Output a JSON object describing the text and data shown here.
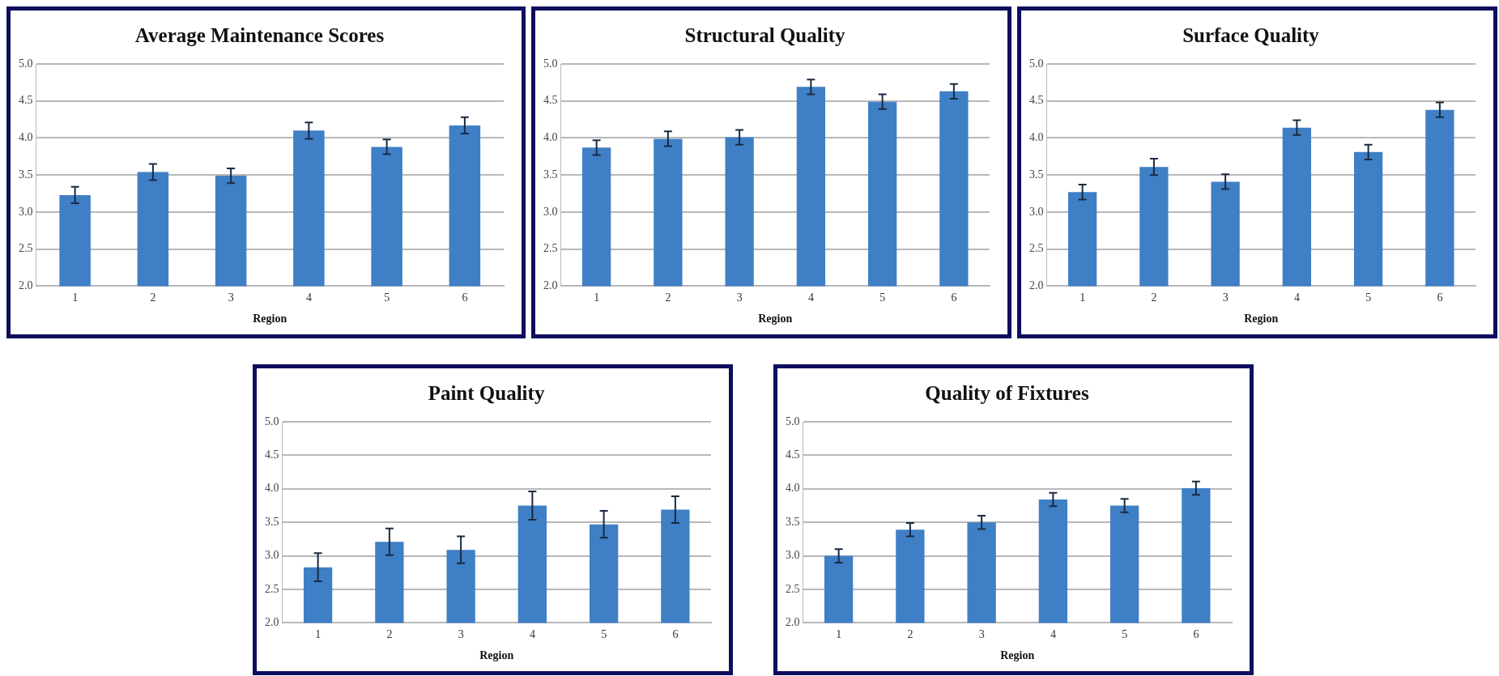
{
  "chart_data": [
    {
      "type": "bar",
      "title": "Average Maintenance Scores",
      "xlabel": "Region",
      "categories": [
        "1",
        "2",
        "3",
        "4",
        "5",
        "6"
      ],
      "values": [
        3.23,
        3.54,
        3.49,
        4.1,
        3.88,
        4.17
      ],
      "errors": [
        0.11,
        0.11,
        0.1,
        0.11,
        0.1,
        0.11
      ],
      "color": "#3f7fc6",
      "ylim": [
        2.0,
        5.0
      ],
      "yticks": [
        {
          "value": 2,
          "label": "2.0"
        },
        {
          "value": 2.5,
          "label": "2.5"
        },
        {
          "value": 3,
          "label": "3.0"
        },
        {
          "value": 3.5,
          "label": "3.5"
        },
        {
          "value": 4,
          "label": "4.0"
        },
        {
          "value": 4.5,
          "label": "4.5"
        },
        {
          "value": 5,
          "label": "5.0"
        }
      ],
      "grid": "y",
      "legend": false
    },
    {
      "type": "bar",
      "title": "Structural Quality",
      "xlabel": "Region",
      "categories": [
        "1",
        "2",
        "3",
        "4",
        "5",
        "6"
      ],
      "values": [
        3.87,
        3.99,
        4.01,
        4.69,
        4.49,
        4.63
      ],
      "errors": [
        0.1,
        0.1,
        0.1,
        0.1,
        0.1,
        0.1
      ],
      "color": "#3f7fc6",
      "ylim": [
        2.0,
        5.0
      ],
      "yticks": [
        {
          "value": 2,
          "label": "2.0"
        },
        {
          "value": 2.5,
          "label": "2.5"
        },
        {
          "value": 3,
          "label": "3.0"
        },
        {
          "value": 3.5,
          "label": "3.5"
        },
        {
          "value": 4,
          "label": "4.0"
        },
        {
          "value": 4.5,
          "label": "4.5"
        },
        {
          "value": 5,
          "label": "5.0"
        }
      ],
      "grid": "y",
      "legend": false
    },
    {
      "type": "bar",
      "title": "Surface Quality",
      "xlabel": "Region",
      "categories": [
        "1",
        "2",
        "3",
        "4",
        "5",
        "6"
      ],
      "values": [
        3.27,
        3.61,
        3.41,
        4.14,
        3.81,
        4.38
      ],
      "errors": [
        0.1,
        0.11,
        0.1,
        0.1,
        0.1,
        0.1
      ],
      "color": "#3f7fc6",
      "ylim": [
        2.0,
        5.0
      ],
      "yticks": [
        {
          "value": 2,
          "label": "2.0"
        },
        {
          "value": 2.5,
          "label": "2.5"
        },
        {
          "value": 3,
          "label": "3.0"
        },
        {
          "value": 3.5,
          "label": "3.5"
        },
        {
          "value": 4,
          "label": "4.0"
        },
        {
          "value": 4.5,
          "label": "4.5"
        },
        {
          "value": 5,
          "label": "5.0"
        }
      ],
      "grid": "y",
      "legend": false
    },
    {
      "type": "bar",
      "title": "Paint Quality",
      "xlabel": "Region",
      "categories": [
        "1",
        "2",
        "3",
        "4",
        "5",
        "6"
      ],
      "values": [
        2.83,
        3.21,
        3.09,
        3.75,
        3.47,
        3.69
      ],
      "errors": [
        0.21,
        0.2,
        0.2,
        0.21,
        0.2,
        0.2
      ],
      "color": "#3f7fc6",
      "ylim": [
        2.0,
        5.0
      ],
      "yticks": [
        {
          "value": 2,
          "label": "2.0"
        },
        {
          "value": 2.5,
          "label": "2.5"
        },
        {
          "value": 3,
          "label": "3.0"
        },
        {
          "value": 3.5,
          "label": "3.5"
        },
        {
          "value": 4,
          "label": "4.0"
        },
        {
          "value": 4.5,
          "label": "4.5"
        },
        {
          "value": 5,
          "label": "5.0"
        }
      ],
      "grid": "y",
      "legend": false
    },
    {
      "type": "bar",
      "title": "Quality of Fixtures",
      "xlabel": "Region",
      "categories": [
        "1",
        "2",
        "3",
        "4",
        "5",
        "6"
      ],
      "values": [
        3.0,
        3.39,
        3.5,
        3.84,
        3.75,
        4.01
      ],
      "errors": [
        0.1,
        0.1,
        0.1,
        0.1,
        0.1,
        0.1
      ],
      "color": "#3f7fc6",
      "ylim": [
        2.0,
        5.0
      ],
      "yticks": [
        {
          "value": 2,
          "label": "2.0"
        },
        {
          "value": 2.5,
          "label": "2.5"
        },
        {
          "value": 3,
          "label": "3.0"
        },
        {
          "value": 3.5,
          "label": "3.5"
        },
        {
          "value": 4,
          "label": "4.0"
        },
        {
          "value": 4.5,
          "label": "4.5"
        },
        {
          "value": 5,
          "label": "5.0"
        }
      ],
      "grid": "y",
      "legend": false
    }
  ]
}
